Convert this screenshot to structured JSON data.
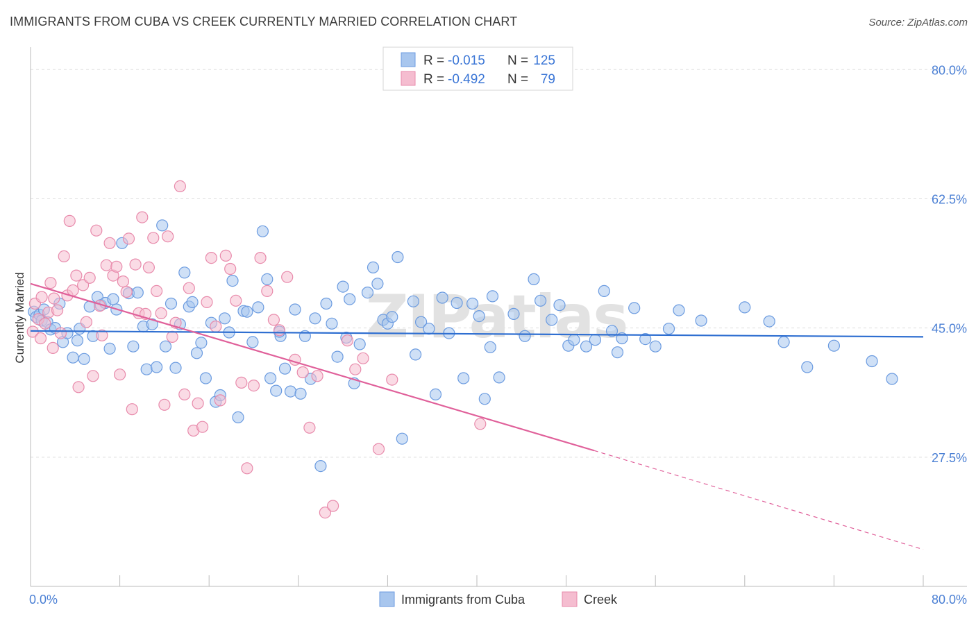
{
  "title": "IMMIGRANTS FROM CUBA VS CREEK CURRENTLY MARRIED CORRELATION CHART",
  "source": "Source: ZipAtlas.com",
  "watermark": "ZIPatlas",
  "colors": {
    "blue_fill": "#a8c6ee",
    "blue_stroke": "#6b9be0",
    "blue_line": "#2f6fd1",
    "pink_fill": "#f5bdd0",
    "pink_stroke": "#e88aab",
    "pink_line": "#e0609a",
    "tick_text": "#4a7fd4",
    "grid": "#dddddd"
  },
  "legend": {
    "rows": [
      {
        "r_label": "R =",
        "r_value": "-0.015",
        "n_label": "N =",
        "n_value": "125"
      },
      {
        "r_label": "R =",
        "r_value": "-0.492",
        "n_label": "N =",
        "n_value": "79"
      }
    ]
  },
  "bottom_legend": [
    "Immigrants from Cuba",
    "Creek"
  ],
  "chart_data": {
    "type": "scatter",
    "title": "IMMIGRANTS FROM CUBA VS CREEK CURRENTLY MARRIED CORRELATION CHART",
    "xlabel": "",
    "ylabel": "Currently Married",
    "xlim": [
      0,
      80
    ],
    "ylim": [
      10,
      82
    ],
    "x_tick_labels": [
      "0.0%",
      "80.0%"
    ],
    "y_ticks": [
      27.5,
      45.0,
      62.5,
      80.0
    ],
    "y_tick_labels": [
      "27.5%",
      "45.0%",
      "62.5%",
      "80.0%"
    ],
    "grid": true,
    "series": [
      {
        "name": "Immigrants from Cuba",
        "trend": {
          "x": [
            0,
            80
          ],
          "y": [
            44.6,
            43.8
          ]
        },
        "points": [
          [
            0.3,
            47.2
          ],
          [
            0.5,
            46.5
          ],
          [
            0.8,
            46.8
          ],
          [
            1.0,
            46.0
          ],
          [
            1.2,
            47.5
          ],
          [
            1.5,
            45.8
          ],
          [
            1.8,
            44.8
          ],
          [
            2.2,
            45.0
          ],
          [
            2.6,
            48.3
          ],
          [
            2.9,
            43.1
          ],
          [
            3.3,
            44.3
          ],
          [
            3.8,
            41.0
          ],
          [
            4.2,
            43.3
          ],
          [
            4.4,
            44.9
          ],
          [
            4.8,
            40.8
          ],
          [
            5.3,
            47.9
          ],
          [
            5.6,
            43.9
          ],
          [
            6.0,
            49.2
          ],
          [
            6.3,
            48.1
          ],
          [
            6.7,
            48.4
          ],
          [
            7.1,
            42.2
          ],
          [
            7.4,
            48.9
          ],
          [
            7.7,
            47.5
          ],
          [
            8.2,
            56.5
          ],
          [
            8.8,
            49.7
          ],
          [
            9.2,
            42.5
          ],
          [
            9.6,
            49.8
          ],
          [
            10.1,
            45.2
          ],
          [
            10.4,
            39.4
          ],
          [
            10.9,
            45.5
          ],
          [
            11.3,
            39.7
          ],
          [
            11.8,
            58.9
          ],
          [
            12.1,
            42.5
          ],
          [
            12.6,
            48.3
          ],
          [
            13.0,
            39.6
          ],
          [
            13.4,
            45.5
          ],
          [
            13.8,
            52.5
          ],
          [
            14.2,
            47.9
          ],
          [
            14.5,
            48.5
          ],
          [
            14.9,
            41.6
          ],
          [
            15.3,
            43.0
          ],
          [
            15.7,
            38.2
          ],
          [
            16.2,
            45.7
          ],
          [
            16.6,
            35.0
          ],
          [
            17.0,
            35.9
          ],
          [
            17.4,
            46.3
          ],
          [
            17.8,
            44.4
          ],
          [
            18.1,
            51.4
          ],
          [
            18.6,
            32.9
          ],
          [
            19.1,
            47.3
          ],
          [
            19.4,
            47.2
          ],
          [
            19.9,
            43.1
          ],
          [
            20.4,
            47.8
          ],
          [
            20.8,
            58.1
          ],
          [
            21.2,
            51.6
          ],
          [
            21.5,
            38.2
          ],
          [
            22.0,
            36.5
          ],
          [
            22.4,
            43.9
          ],
          [
            22.8,
            39.5
          ],
          [
            23.3,
            36.4
          ],
          [
            23.7,
            47.5
          ],
          [
            24.2,
            36.1
          ],
          [
            24.6,
            43.9
          ],
          [
            25.1,
            38.1
          ],
          [
            25.5,
            46.3
          ],
          [
            26.0,
            26.3
          ],
          [
            26.5,
            48.3
          ],
          [
            27.0,
            45.6
          ],
          [
            27.5,
            41.1
          ],
          [
            28.0,
            50.6
          ],
          [
            28.6,
            48.9
          ],
          [
            29.0,
            37.5
          ],
          [
            29.5,
            42.8
          ],
          [
            30.2,
            49.8
          ],
          [
            30.7,
            53.2
          ],
          [
            31.1,
            51.0
          ],
          [
            31.6,
            46.1
          ],
          [
            32.0,
            45.6
          ],
          [
            32.4,
            46.5
          ],
          [
            32.9,
            54.6
          ],
          [
            33.3,
            30.0
          ],
          [
            34.3,
            48.6
          ],
          [
            35.0,
            45.8
          ],
          [
            35.7,
            44.9
          ],
          [
            36.3,
            36.0
          ],
          [
            36.9,
            49.1
          ],
          [
            37.5,
            44.3
          ],
          [
            38.2,
            48.4
          ],
          [
            38.8,
            38.2
          ],
          [
            39.6,
            48.3
          ],
          [
            40.2,
            46.6
          ],
          [
            40.7,
            35.4
          ],
          [
            41.4,
            49.3
          ],
          [
            42.0,
            38.3
          ],
          [
            43.3,
            46.9
          ],
          [
            44.3,
            43.9
          ],
          [
            45.1,
            51.6
          ],
          [
            45.7,
            48.7
          ],
          [
            46.7,
            46.1
          ],
          [
            47.4,
            48.1
          ],
          [
            48.2,
            42.6
          ],
          [
            48.7,
            43.4
          ],
          [
            49.8,
            42.5
          ],
          [
            50.6,
            43.4
          ],
          [
            51.4,
            50.0
          ],
          [
            52.1,
            44.6
          ],
          [
            53.0,
            43.6
          ],
          [
            54.1,
            47.7
          ],
          [
            55.1,
            43.5
          ],
          [
            56.0,
            42.5
          ],
          [
            57.2,
            44.9
          ],
          [
            58.1,
            47.4
          ],
          [
            60.1,
            46.0
          ],
          [
            64.0,
            47.8
          ],
          [
            66.2,
            45.9
          ],
          [
            67.5,
            43.1
          ],
          [
            69.6,
            39.7
          ],
          [
            72.0,
            42.6
          ],
          [
            75.4,
            40.5
          ],
          [
            77.2,
            38.1
          ],
          [
            22.3,
            44.5
          ],
          [
            41.2,
            42.4
          ],
          [
            52.6,
            41.7
          ],
          [
            34.5,
            41.4
          ],
          [
            28.3,
            43.7
          ]
        ]
      },
      {
        "name": "Creek",
        "trend": {
          "x": [
            0,
            50.5
          ],
          "y": [
            51.0,
            28.4
          ]
        },
        "trend_dashed": {
          "x": [
            50.5,
            80
          ],
          "y": [
            28.4,
            15.0
          ]
        },
        "points": [
          [
            0.4,
            48.3
          ],
          [
            0.7,
            46.2
          ],
          [
            1.0,
            49.2
          ],
          [
            1.3,
            45.6
          ],
          [
            1.6,
            47.1
          ],
          [
            1.8,
            51.1
          ],
          [
            2.1,
            49.0
          ],
          [
            2.4,
            47.4
          ],
          [
            2.7,
            44.3
          ],
          [
            3.0,
            54.7
          ],
          [
            3.3,
            49.4
          ],
          [
            3.5,
            59.5
          ],
          [
            3.8,
            50.1
          ],
          [
            4.1,
            52.1
          ],
          [
            4.3,
            37.0
          ],
          [
            4.7,
            50.8
          ],
          [
            5.0,
            45.8
          ],
          [
            5.3,
            51.8
          ],
          [
            5.6,
            38.5
          ],
          [
            5.9,
            58.2
          ],
          [
            6.2,
            48.0
          ],
          [
            6.4,
            44.0
          ],
          [
            6.8,
            53.5
          ],
          [
            7.1,
            56.5
          ],
          [
            7.4,
            52.1
          ],
          [
            7.7,
            53.3
          ],
          [
            8.0,
            38.7
          ],
          [
            8.3,
            51.3
          ],
          [
            8.6,
            49.9
          ],
          [
            8.8,
            57.1
          ],
          [
            9.1,
            34.0
          ],
          [
            9.4,
            53.6
          ],
          [
            9.7,
            47.0
          ],
          [
            10.0,
            60.0
          ],
          [
            10.3,
            46.9
          ],
          [
            10.6,
            53.2
          ],
          [
            11.0,
            57.2
          ],
          [
            11.3,
            50.0
          ],
          [
            11.7,
            47.0
          ],
          [
            12.0,
            34.6
          ],
          [
            12.3,
            57.4
          ],
          [
            12.7,
            43.8
          ],
          [
            13.0,
            45.7
          ],
          [
            13.4,
            64.2
          ],
          [
            13.8,
            36.0
          ],
          [
            14.2,
            50.4
          ],
          [
            14.6,
            31.1
          ],
          [
            15.0,
            34.8
          ],
          [
            15.4,
            31.6
          ],
          [
            15.8,
            48.5
          ],
          [
            16.2,
            54.5
          ],
          [
            16.6,
            45.2
          ],
          [
            17.0,
            35.2
          ],
          [
            17.5,
            54.8
          ],
          [
            17.9,
            53.0
          ],
          [
            18.4,
            48.7
          ],
          [
            18.9,
            37.6
          ],
          [
            19.4,
            26.0
          ],
          [
            20.0,
            37.2
          ],
          [
            20.6,
            54.5
          ],
          [
            21.2,
            50.0
          ],
          [
            21.8,
            46.1
          ],
          [
            22.3,
            44.7
          ],
          [
            23.0,
            51.9
          ],
          [
            23.7,
            40.7
          ],
          [
            24.4,
            39.0
          ],
          [
            25.0,
            31.5
          ],
          [
            25.7,
            38.5
          ],
          [
            26.4,
            20.0
          ],
          [
            27.1,
            20.9
          ],
          [
            28.4,
            43.3
          ],
          [
            29.1,
            39.4
          ],
          [
            29.8,
            40.9
          ],
          [
            31.2,
            28.6
          ],
          [
            32.4,
            38.0
          ],
          [
            40.3,
            32.0
          ],
          [
            0.2,
            44.5
          ],
          [
            0.9,
            43.6
          ],
          [
            2.0,
            42.3
          ]
        ]
      }
    ]
  }
}
